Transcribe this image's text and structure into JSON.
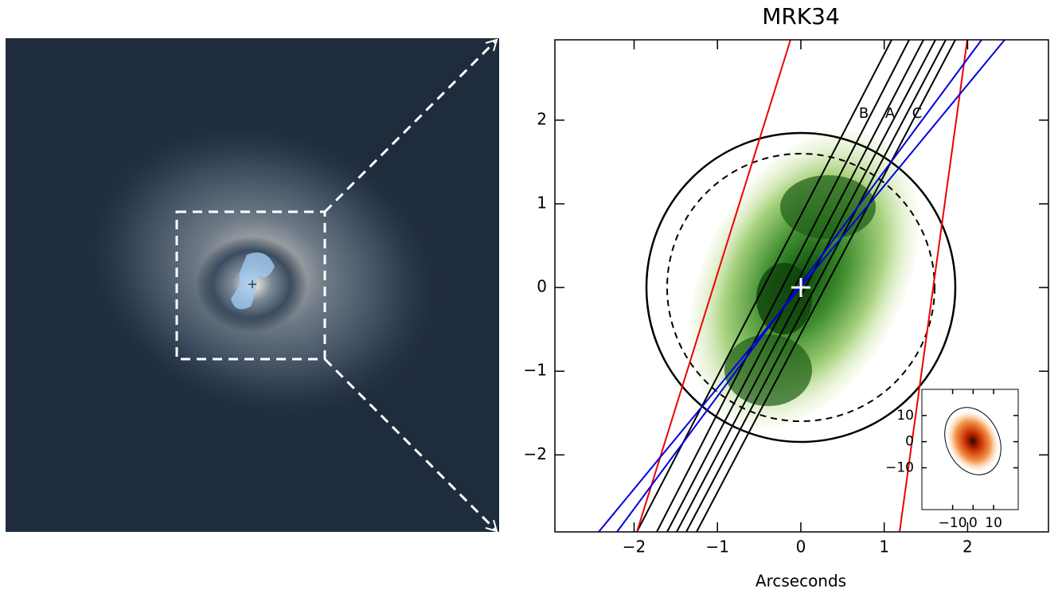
{
  "chart_data": {
    "type": "overlay",
    "title": "MRK34",
    "xlabel": "Arcseconds",
    "xlim": [
      -2.95,
      2.97
    ],
    "ylim": [
      -2.92,
      2.96
    ],
    "xticks": [
      {
        "value": -2,
        "label": "−2"
      },
      {
        "value": -1,
        "label": "−1"
      },
      0,
      1,
      2
    ],
    "yticks": [
      {
        "value": -2,
        "label": "−2"
      },
      {
        "value": -1,
        "label": "−1"
      },
      0,
      1,
      2
    ],
    "slit_labels": [
      "B",
      "A",
      "C"
    ],
    "inset": {
      "xlim": [
        -25,
        22
      ],
      "ylim": [
        -26,
        20
      ],
      "xticks": [
        {
          "value": -10,
          "label": "−10"
        },
        0,
        10
      ],
      "yticks": [
        {
          "value": -10,
          "label": "−10"
        },
        0,
        10
      ]
    }
  }
}
